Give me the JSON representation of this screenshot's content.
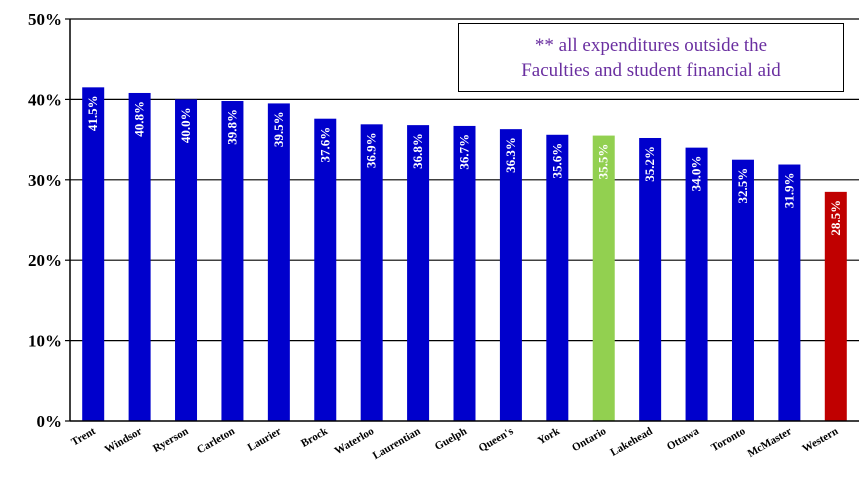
{
  "chart_data": {
    "type": "bar",
    "categories": [
      "Trent",
      "Windsor",
      "Ryerson",
      "Carleton",
      "Laurier",
      "Brock",
      "Waterloo",
      "Laurentian",
      "Guelph",
      "Queen's",
      "York",
      "Ontario",
      "Lakehead",
      "Ottawa",
      "Toronto",
      "McMaster",
      "Western"
    ],
    "values": [
      41.5,
      40.8,
      40.0,
      39.8,
      39.5,
      37.6,
      36.9,
      36.8,
      36.7,
      36.3,
      35.6,
      35.5,
      35.2,
      34.0,
      32.5,
      31.9,
      28.5
    ],
    "value_labels": [
      "41.5%",
      "40.8%",
      "40.0%",
      "39.8%",
      "39.5%",
      "37.6%",
      "36.9%",
      "36.8%",
      "36.7%",
      "36.3%",
      "35.6%",
      "35.5%",
      "35.2%",
      "34.0%",
      "32.5%",
      "31.9%",
      "28.5%"
    ],
    "bar_colors": [
      "#0000cc",
      "#0000cc",
      "#0000cc",
      "#0000cc",
      "#0000cc",
      "#0000cc",
      "#0000cc",
      "#0000cc",
      "#0000cc",
      "#0000cc",
      "#0000cc",
      "#92d050",
      "#0000cc",
      "#0000cc",
      "#0000cc",
      "#0000cc",
      "#c00000"
    ],
    "yticks": [
      0,
      10,
      20,
      30,
      40,
      50
    ],
    "ytick_labels": [
      "0%",
      "10%",
      "20%",
      "30%",
      "40%",
      "50%"
    ],
    "ylim": [
      0,
      50
    ],
    "grid": true,
    "title": "",
    "xlabel": "",
    "ylabel": ""
  },
  "annotation": {
    "line1": "**  all expenditures outside the",
    "line2": "Faculties and student financial aid"
  },
  "colors": {
    "annotation_text": "#6a2fa0",
    "grid": "#000000"
  }
}
